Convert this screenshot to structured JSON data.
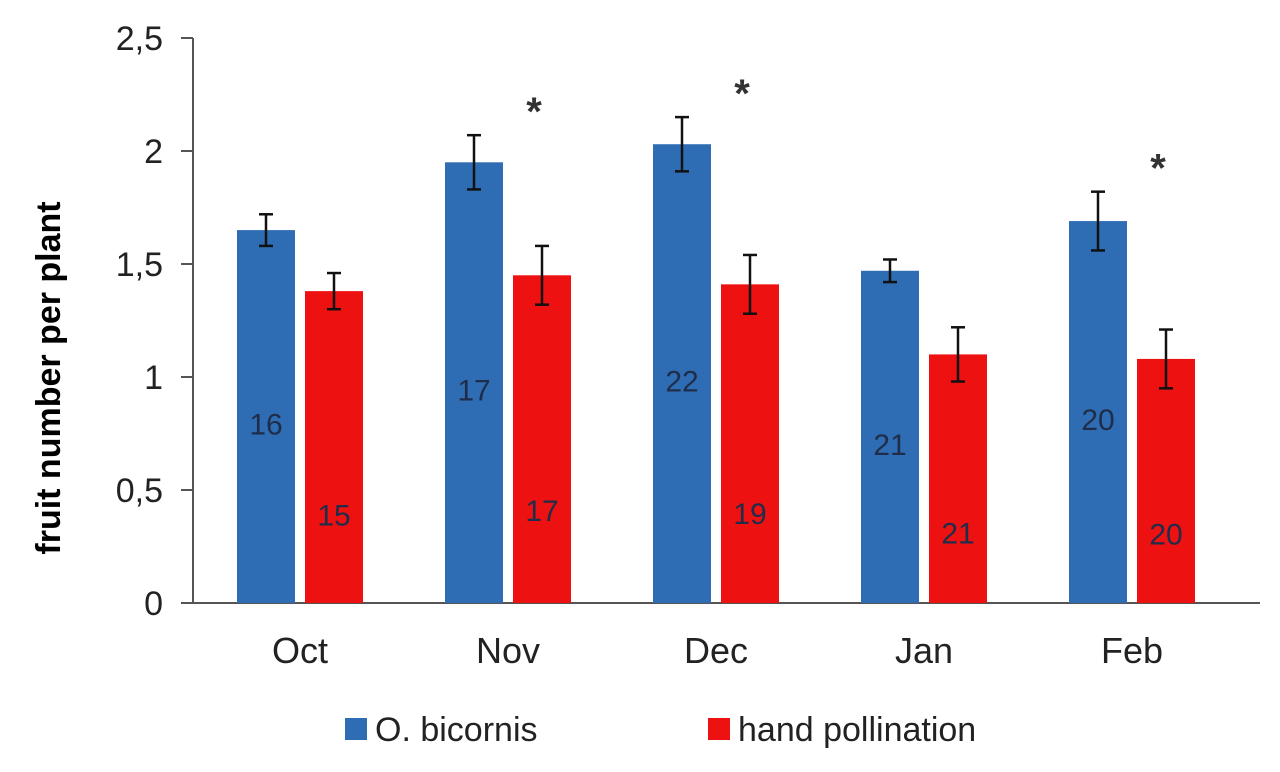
{
  "chart_data": {
    "type": "bar",
    "categories": [
      "Oct",
      "Nov",
      "Dec",
      "Jan",
      "Feb"
    ],
    "ylabel": "fruit number per plant",
    "xlabel": "",
    "ylim": [
      0,
      2.5
    ],
    "yticks": [
      "0",
      "0,5",
      "1",
      "1,5",
      "2",
      "2,5"
    ],
    "grid": false,
    "legend": "bottom",
    "series": [
      {
        "name": "O. bicornis",
        "color": "#2e6db3",
        "values": [
          1.65,
          1.95,
          2.03,
          1.47,
          1.69
        ],
        "error": [
          0.07,
          0.12,
          0.12,
          0.05,
          0.13
        ],
        "labels": [
          "16",
          "17",
          "22",
          "21",
          "20"
        ]
      },
      {
        "name": "hand pollination",
        "color": "#ee1111",
        "values": [
          1.38,
          1.45,
          1.41,
          1.1,
          1.08
        ],
        "error": [
          0.08,
          0.13,
          0.13,
          0.12,
          0.13
        ],
        "labels": [
          "15",
          "17",
          "19",
          "21",
          "20"
        ]
      }
    ],
    "significance": [
      "",
      "*",
      "*",
      "",
      "*"
    ]
  }
}
